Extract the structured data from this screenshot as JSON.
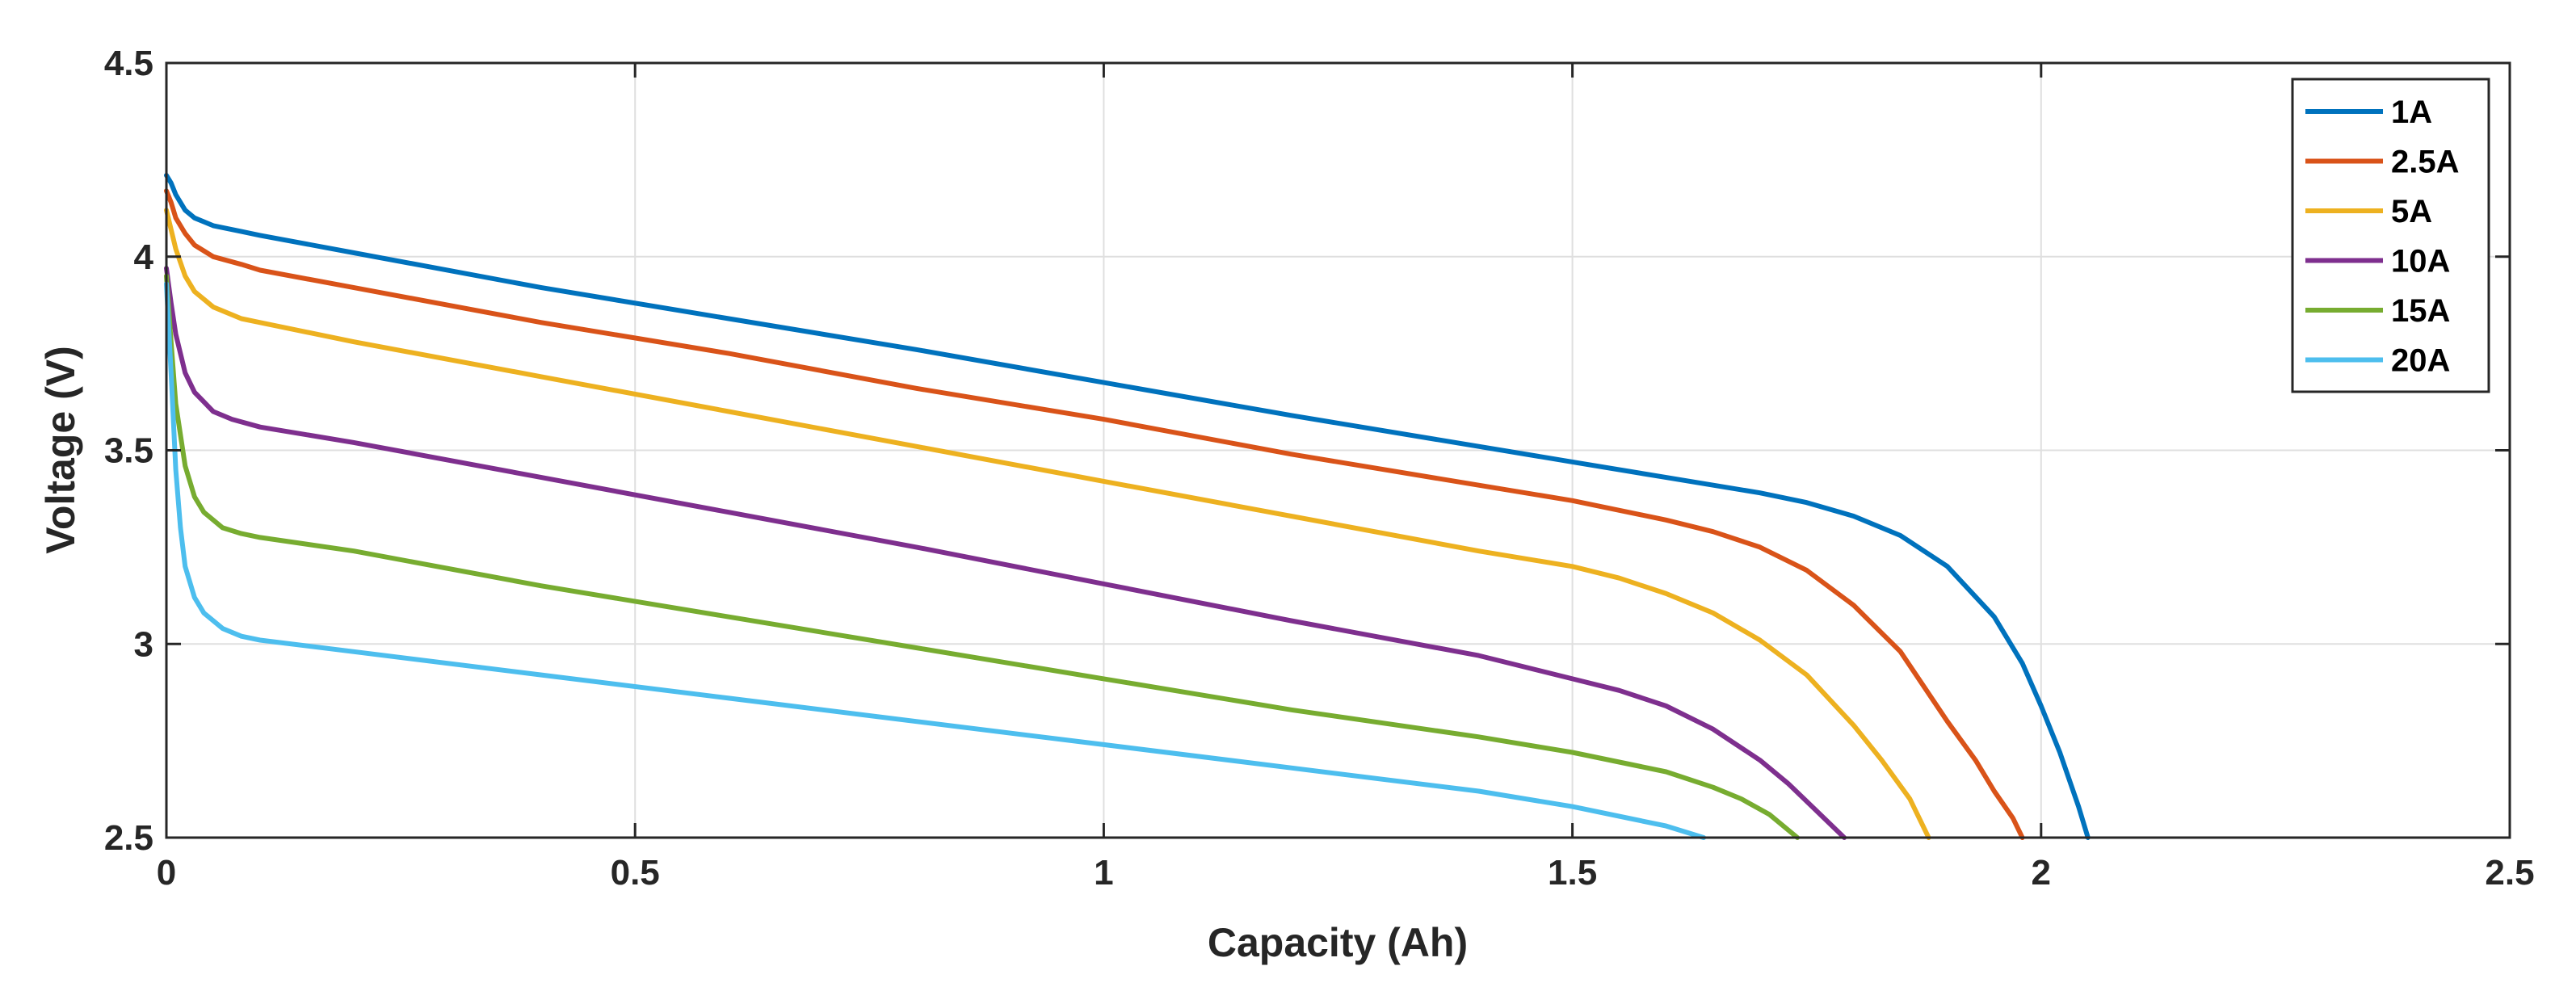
{
  "chart_data": {
    "type": "line",
    "title": "",
    "xlabel": "Capacity (Ah)",
    "ylabel": "Voltage (V)",
    "xlim": [
      0,
      2.5
    ],
    "ylim": [
      2.5,
      4.5
    ],
    "xticks": [
      "0",
      "0.5",
      "1",
      "1.5",
      "2",
      "2.5"
    ],
    "yticks": [
      "2.5",
      "3",
      "3.5",
      "4",
      "4.5"
    ],
    "grid": true,
    "legend_position": "top-right",
    "series": [
      {
        "name": "1A",
        "color": "#0072BD",
        "x": [
          0,
          0.005,
          0.01,
          0.02,
          0.03,
          0.05,
          0.08,
          0.1,
          0.2,
          0.4,
          0.6,
          0.8,
          1.0,
          1.2,
          1.4,
          1.5,
          1.6,
          1.7,
          1.75,
          1.8,
          1.85,
          1.9,
          1.95,
          1.98,
          2.0,
          2.02,
          2.04,
          2.05
        ],
        "y": [
          4.21,
          4.19,
          4.16,
          4.12,
          4.1,
          4.08,
          4.065,
          4.055,
          4.01,
          3.92,
          3.84,
          3.76,
          3.675,
          3.59,
          3.51,
          3.47,
          3.43,
          3.39,
          3.365,
          3.33,
          3.28,
          3.2,
          3.07,
          2.95,
          2.84,
          2.72,
          2.58,
          2.5
        ]
      },
      {
        "name": "2.5A",
        "color": "#D95319",
        "x": [
          0,
          0.005,
          0.01,
          0.02,
          0.03,
          0.05,
          0.08,
          0.1,
          0.2,
          0.4,
          0.6,
          0.8,
          1.0,
          1.2,
          1.4,
          1.5,
          1.6,
          1.65,
          1.7,
          1.75,
          1.8,
          1.85,
          1.9,
          1.93,
          1.95,
          1.97,
          1.98
        ],
        "y": [
          4.17,
          4.14,
          4.1,
          4.06,
          4.03,
          4.0,
          3.98,
          3.965,
          3.92,
          3.83,
          3.75,
          3.66,
          3.58,
          3.49,
          3.41,
          3.37,
          3.32,
          3.29,
          3.25,
          3.19,
          3.1,
          2.98,
          2.8,
          2.7,
          2.62,
          2.55,
          2.5
        ]
      },
      {
        "name": "5A",
        "color": "#EDB120",
        "x": [
          0,
          0.005,
          0.01,
          0.02,
          0.03,
          0.05,
          0.08,
          0.1,
          0.2,
          0.4,
          0.6,
          0.8,
          1.0,
          1.2,
          1.4,
          1.5,
          1.55,
          1.6,
          1.65,
          1.7,
          1.75,
          1.8,
          1.83,
          1.86,
          1.88
        ],
        "y": [
          4.12,
          4.07,
          4.02,
          3.95,
          3.91,
          3.87,
          3.84,
          3.83,
          3.78,
          3.69,
          3.6,
          3.51,
          3.42,
          3.33,
          3.24,
          3.2,
          3.17,
          3.13,
          3.08,
          3.01,
          2.92,
          2.79,
          2.7,
          2.6,
          2.5
        ]
      },
      {
        "name": "10A",
        "color": "#7E2F8E",
        "x": [
          0,
          0.005,
          0.01,
          0.02,
          0.03,
          0.05,
          0.07,
          0.1,
          0.2,
          0.4,
          0.6,
          0.8,
          1.0,
          1.2,
          1.4,
          1.5,
          1.55,
          1.6,
          1.65,
          1.7,
          1.73,
          1.76,
          1.79
        ],
        "y": [
          3.97,
          3.88,
          3.8,
          3.7,
          3.65,
          3.6,
          3.58,
          3.56,
          3.52,
          3.43,
          3.34,
          3.25,
          3.155,
          3.06,
          2.97,
          2.91,
          2.88,
          2.84,
          2.78,
          2.7,
          2.64,
          2.57,
          2.5
        ]
      },
      {
        "name": "15A",
        "color": "#77AC30",
        "x": [
          0,
          0.005,
          0.01,
          0.02,
          0.03,
          0.04,
          0.06,
          0.08,
          0.1,
          0.2,
          0.4,
          0.6,
          0.8,
          1.0,
          1.2,
          1.4,
          1.5,
          1.6,
          1.65,
          1.68,
          1.71,
          1.74
        ],
        "y": [
          3.95,
          3.78,
          3.62,
          3.46,
          3.38,
          3.34,
          3.3,
          3.285,
          3.275,
          3.24,
          3.15,
          3.07,
          2.99,
          2.91,
          2.83,
          2.76,
          2.72,
          2.67,
          2.63,
          2.6,
          2.56,
          2.5
        ]
      },
      {
        "name": "20A",
        "color": "#4DBEEE",
        "x": [
          0,
          0.005,
          0.01,
          0.015,
          0.02,
          0.03,
          0.04,
          0.06,
          0.08,
          0.1,
          0.2,
          0.4,
          0.6,
          0.8,
          1.0,
          1.2,
          1.4,
          1.5,
          1.6,
          1.64
        ],
        "y": [
          3.93,
          3.7,
          3.45,
          3.3,
          3.2,
          3.12,
          3.08,
          3.04,
          3.02,
          3.01,
          2.98,
          2.92,
          2.86,
          2.8,
          2.74,
          2.68,
          2.62,
          2.58,
          2.53,
          2.5
        ]
      }
    ]
  }
}
